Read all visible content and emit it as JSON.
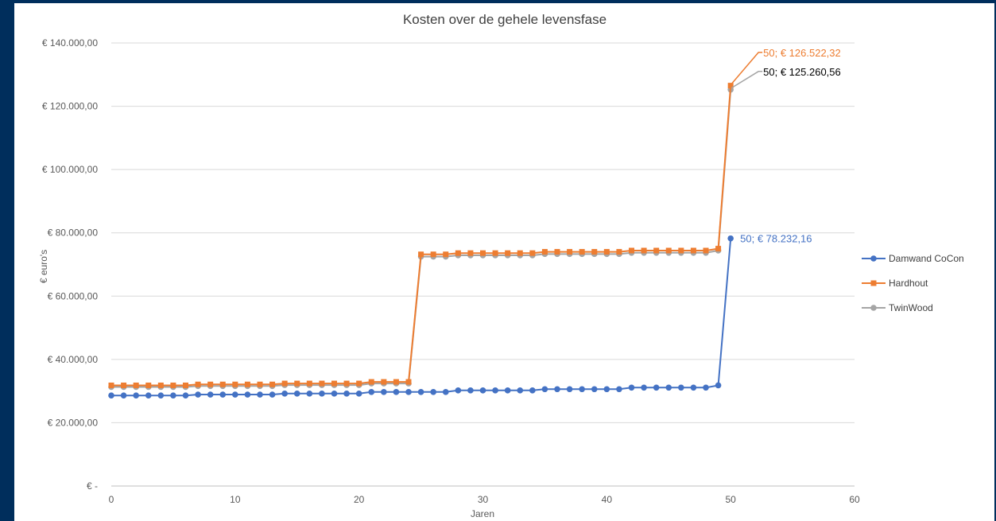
{
  "chart_data": {
    "type": "line",
    "title": "Kosten over de gehele levensfase",
    "xlabel": "Jaren",
    "ylabel": "€ euro's",
    "xlim": [
      0,
      60
    ],
    "ylim": [
      0,
      140000
    ],
    "x_ticks": [
      0,
      10,
      20,
      30,
      40,
      50,
      60
    ],
    "y_ticks": [
      0,
      20000,
      40000,
      60000,
      80000,
      100000,
      120000,
      140000
    ],
    "y_tick_labels": [
      "€ -",
      "€ 20.000,00",
      "€ 40.000,00",
      "€ 60.000,00",
      "€ 80.000,00",
      "€ 100.000,00",
      "€ 120.000,00",
      "€ 140.000,00"
    ],
    "grid": "horizontal",
    "legend_position": "right",
    "x": [
      0,
      1,
      2,
      3,
      4,
      5,
      6,
      7,
      8,
      9,
      10,
      11,
      12,
      13,
      14,
      15,
      16,
      17,
      18,
      19,
      20,
      21,
      22,
      23,
      24,
      25,
      26,
      27,
      28,
      29,
      30,
      31,
      32,
      33,
      34,
      35,
      36,
      37,
      38,
      39,
      40,
      41,
      42,
      43,
      44,
      45,
      46,
      47,
      48,
      49,
      50
    ],
    "series": [
      {
        "name": "Damwand CoCon",
        "color": "#4472c4",
        "values": [
          28600,
          28600,
          28600,
          28600,
          28600,
          28600,
          28600,
          28900,
          28900,
          28900,
          28900,
          28900,
          28900,
          28900,
          29200,
          29200,
          29200,
          29200,
          29200,
          29200,
          29200,
          29700,
          29700,
          29700,
          29700,
          29700,
          29700,
          29700,
          30200,
          30200,
          30200,
          30200,
          30200,
          30200,
          30200,
          30600,
          30600,
          30600,
          30600,
          30600,
          30600,
          30600,
          31100,
          31100,
          31100,
          31100,
          31100,
          31100,
          31100,
          31800,
          78232.16
        ],
        "end_label": "50; € 78.232,16"
      },
      {
        "name": "Hardhout",
        "color": "#ed7d31",
        "values": [
          31800,
          31800,
          31800,
          31800,
          31800,
          31800,
          31800,
          32100,
          32100,
          32100,
          32100,
          32100,
          32100,
          32100,
          32400,
          32400,
          32400,
          32400,
          32400,
          32400,
          32400,
          32900,
          32900,
          32900,
          32900,
          73200,
          73200,
          73200,
          73600,
          73600,
          73600,
          73600,
          73600,
          73600,
          73600,
          74000,
          74000,
          74000,
          74000,
          74000,
          74000,
          74000,
          74400,
          74400,
          74400,
          74400,
          74400,
          74400,
          74400,
          75000,
          126522.32
        ],
        "end_label": "50;  € 126.522,32"
      },
      {
        "name": "TwinWood",
        "color": "#a5a5a5",
        "values": [
          31300,
          31300,
          31300,
          31300,
          31300,
          31300,
          31300,
          31600,
          31600,
          31600,
          31600,
          31600,
          31600,
          31600,
          31900,
          31900,
          31900,
          31900,
          31900,
          31900,
          31900,
          32400,
          32400,
          32400,
          32400,
          72500,
          72500,
          72500,
          72900,
          72900,
          72900,
          72900,
          72900,
          72900,
          72900,
          73300,
          73300,
          73300,
          73300,
          73300,
          73300,
          73300,
          73700,
          73700,
          73700,
          73700,
          73700,
          73700,
          73700,
          74400,
          125260.56
        ],
        "end_label": "50;  € 125.260,56"
      }
    ]
  }
}
